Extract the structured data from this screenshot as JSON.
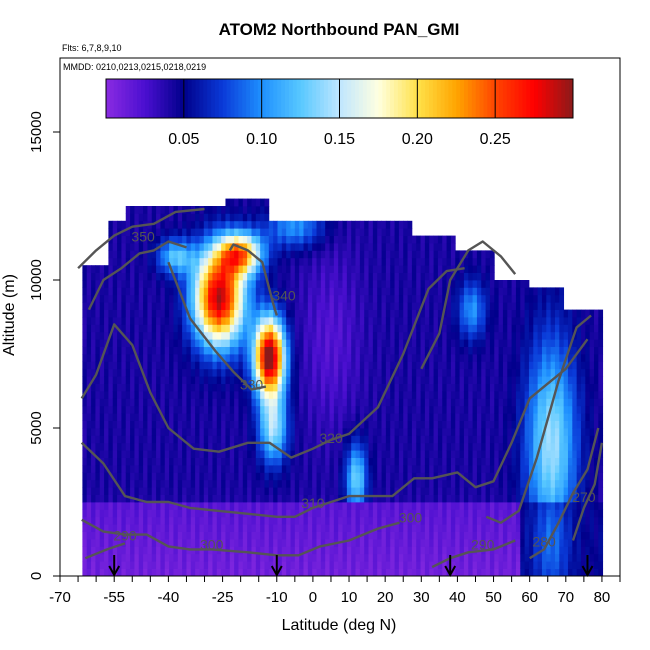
{
  "chart_data": {
    "type": "heatmap",
    "title": "ATOM2 Northbound PAN_GMI",
    "flights_label": "Flts: 6,7,8,9,10",
    "dates_label": "MMDD: 0210,0213,0215,0218,0219",
    "xlabel": "Latitude (deg N)",
    "ylabel": "Altitude (m)",
    "xlim": [
      -70,
      85
    ],
    "ylim": [
      0,
      17500
    ],
    "x_ticks_major": [
      -70,
      -55,
      -40,
      -25,
      -10,
      0,
      10,
      20,
      30,
      40,
      50,
      60,
      70,
      80
    ],
    "x_ticks_all": [
      -70,
      -65,
      -60,
      -55,
      -50,
      -45,
      -40,
      -35,
      -30,
      -25,
      -20,
      -15,
      -10,
      -5,
      0,
      5,
      10,
      15,
      20,
      25,
      30,
      35,
      40,
      45,
      50,
      55,
      60,
      65,
      70,
      75,
      80,
      85
    ],
    "y_ticks": [
      0,
      5000,
      10000,
      15000
    ],
    "colorbar": {
      "range": [
        0,
        0.3
      ],
      "ticks": [
        0.05,
        0.1,
        0.15,
        0.2,
        0.25
      ],
      "tick_labels": [
        "0.05",
        "0.10",
        "0.15",
        "0.20",
        "0.25"
      ],
      "colors": [
        "#8a2be2",
        "#4b0fd0",
        "#00008b",
        "#0a3ad8",
        "#1e90ff",
        "#58c8ff",
        "#bfe6ff",
        "#ffffe0",
        "#ffe24a",
        "#ffa500",
        "#ff4500",
        "#ff0000",
        "#8b1a1a"
      ]
    },
    "contour_labels": [
      {
        "text": "350",
        "x": -47,
        "y": 11300
      },
      {
        "text": "340",
        "x": -8,
        "y": 9300
      },
      {
        "text": "330",
        "x": -17,
        "y": 6300
      },
      {
        "text": "320",
        "x": 5,
        "y": 4500
      },
      {
        "text": "310",
        "x": 0,
        "y": 2300
      },
      {
        "text": "300",
        "x": 27,
        "y": 1800
      },
      {
        "text": "300",
        "x": -28,
        "y": 900
      },
      {
        "text": "290",
        "x": -52,
        "y": 1200
      },
      {
        "text": "290",
        "x": 47,
        "y": 900
      },
      {
        "text": "280",
        "x": 64,
        "y": 1000
      },
      {
        "text": "270",
        "x": 75,
        "y": 2500
      }
    ],
    "arrows_latitude": [
      -55,
      -10,
      38,
      76
    ]
  }
}
